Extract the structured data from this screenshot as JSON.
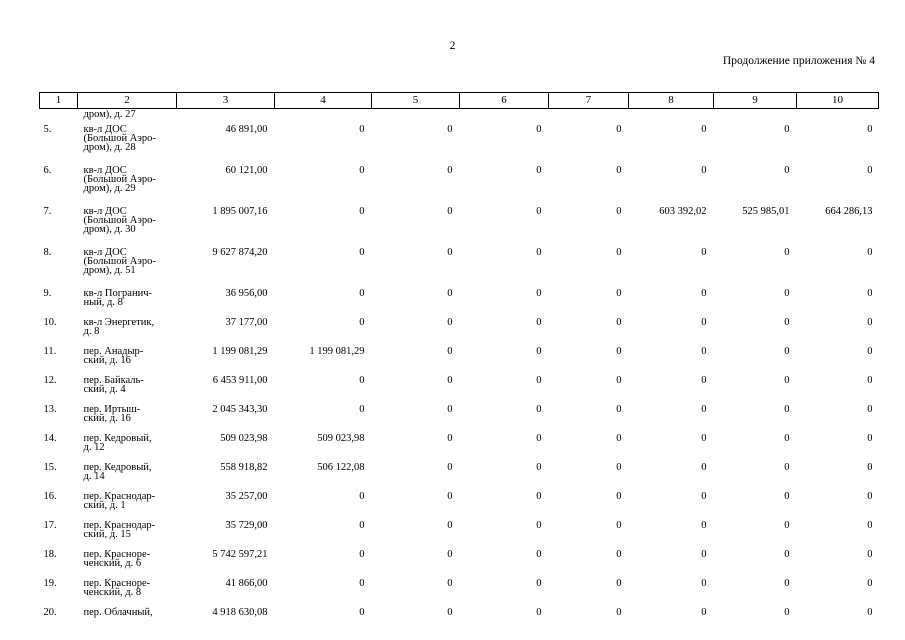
{
  "page_number": "2",
  "annex_caption": "Продолжение приложения № 4",
  "columns": [
    "1",
    "2",
    "3",
    "4",
    "5",
    "6",
    "7",
    "8",
    "9",
    "10"
  ],
  "spill_row": {
    "address": [
      "дром), д. 27"
    ]
  },
  "rows": [
    {
      "num": "5.",
      "address": [
        "кв-л ДОС",
        "(Большой Аэро-",
        "дром), д. 28"
      ],
      "values": [
        "46 891,00",
        "0",
        "0",
        "0",
        "0",
        "0",
        "0",
        "0"
      ]
    },
    {
      "num": "6.",
      "address": [
        "кв-л ДОС",
        "(Большой Аэро-",
        "дром), д. 29"
      ],
      "values": [
        "60 121,00",
        "0",
        "0",
        "0",
        "0",
        "0",
        "0",
        "0"
      ]
    },
    {
      "num": "7.",
      "address": [
        "кв-л ДОС",
        "(Большой Аэро-",
        "дром), д. 30"
      ],
      "values": [
        "1 895 007,16",
        "0",
        "0",
        "0",
        "0",
        "603 392,02",
        "525 985,01",
        "664 286,13"
      ]
    },
    {
      "num": "8.",
      "address": [
        "кв-л ДОС",
        "(Большой Аэро-",
        "дром), д. 51"
      ],
      "values": [
        "9 627 874,20",
        "0",
        "0",
        "0",
        "0",
        "0",
        "0",
        "0"
      ]
    },
    {
      "num": "9.",
      "address": [
        "кв-л Погранич-",
        "ный, д. 8"
      ],
      "values": [
        "36 956,00",
        "0",
        "0",
        "0",
        "0",
        "0",
        "0",
        "0"
      ]
    },
    {
      "num": "10.",
      "address": [
        "кв-л Энергетик,",
        "д. 8"
      ],
      "values": [
        "37 177,00",
        "0",
        "0",
        "0",
        "0",
        "0",
        "0",
        "0"
      ]
    },
    {
      "num": "11.",
      "address": [
        "пер. Анадыр-",
        "ский, д. 16"
      ],
      "values": [
        "1 199 081,29",
        "1 199 081,29",
        "0",
        "0",
        "0",
        "0",
        "0",
        "0"
      ]
    },
    {
      "num": "12.",
      "address": [
        "пер. Байкаль-",
        "ский, д. 4"
      ],
      "values": [
        "6 453 911,00",
        "0",
        "0",
        "0",
        "0",
        "0",
        "0",
        "0"
      ]
    },
    {
      "num": "13.",
      "address": [
        "пер. Иртыш-",
        "ский, д. 16"
      ],
      "values": [
        "2 045 343,30",
        "0",
        "0",
        "0",
        "0",
        "0",
        "0",
        "0"
      ]
    },
    {
      "num": "14.",
      "address": [
        "пер. Кедровый,",
        "д. 12"
      ],
      "values": [
        "509 023,98",
        "509 023,98",
        "0",
        "0",
        "0",
        "0",
        "0",
        "0"
      ]
    },
    {
      "num": "15.",
      "address": [
        "пер. Кедровый,",
        "д. 14"
      ],
      "values": [
        "558 918,82",
        "506 122,08",
        "0",
        "0",
        "0",
        "0",
        "0",
        "0"
      ]
    },
    {
      "num": "16.",
      "address": [
        "пер. Краснодар-",
        "ский, д. 1"
      ],
      "values": [
        "35 257,00",
        "0",
        "0",
        "0",
        "0",
        "0",
        "0",
        "0"
      ]
    },
    {
      "num": "17.",
      "address": [
        "пер. Краснодар-",
        "ский, д. 15"
      ],
      "values": [
        "35 729,00",
        "0",
        "0",
        "0",
        "0",
        "0",
        "0",
        "0"
      ]
    },
    {
      "num": "18.",
      "address": [
        "пер. Красноре-",
        "ченский, д. 6"
      ],
      "values": [
        "5 742 597,21",
        "0",
        "0",
        "0",
        "0",
        "0",
        "0",
        "0"
      ]
    },
    {
      "num": "19.",
      "address": [
        "пер. Красноре-",
        "ченский, д. 8"
      ],
      "values": [
        "41 866,00",
        "0",
        "0",
        "0",
        "0",
        "0",
        "0",
        "0"
      ]
    },
    {
      "num": "20.",
      "address": [
        "пер. Облачный,"
      ],
      "values": [
        "4 918 630,08",
        "0",
        "0",
        "0",
        "0",
        "0",
        "0",
        "0"
      ]
    }
  ]
}
